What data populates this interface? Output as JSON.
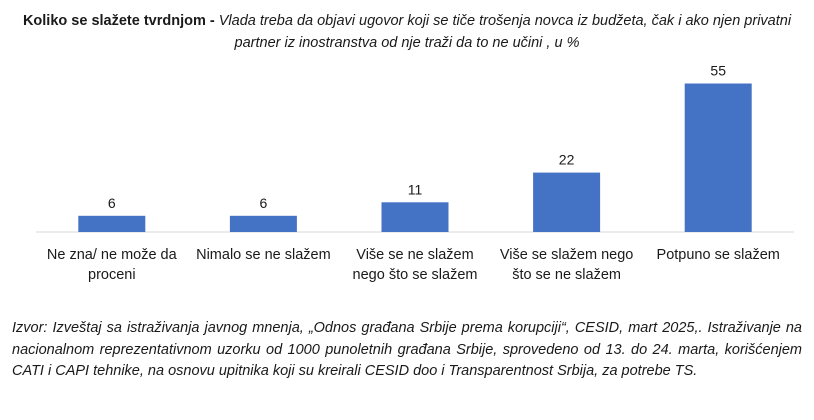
{
  "title": {
    "bold": "Koliko se slažete tvrdnjom -",
    "italic": "Vlada treba da objavi ugovor koji se tiče trošenja novca iz budžeta, čak i ako njen privatni partner iz inostranstva od nje traži da to ne učini , u %"
  },
  "chart_data": {
    "type": "bar",
    "categories": [
      [
        "Ne zna/ ne može da",
        "proceni"
      ],
      [
        "Nimalo se ne slažem"
      ],
      [
        "Više se ne slažem",
        "nego što se slažem"
      ],
      [
        "Više se slažem nego",
        "što se ne slažem"
      ],
      [
        "Potpuno se slažem"
      ]
    ],
    "values": [
      6,
      6,
      11,
      22,
      55
    ],
    "data_labels": [
      "6",
      "6",
      "11",
      "22",
      "55"
    ],
    "bar_color": "#4472C4",
    "axis_color": "#d9d9d9",
    "ylim": [
      0,
      60
    ],
    "grid": false,
    "legend": "none"
  },
  "source": "Izvor: Izveštaj sa istraživanja javnog mnenja, „Odnos građana Srbije prema korupciji“, CESID, mart 2025,. Istraživanje na nacionalnom reprezentativnom uzorku od 1000 punoletnih građana Srbije, sprovedeno od 13. do 24. marta, korišćenjem CATI i CAPI tehnike, na osnovu upitnika koji su kreirali CESID doo i Transparentnost Srbija, za potrebe TS."
}
